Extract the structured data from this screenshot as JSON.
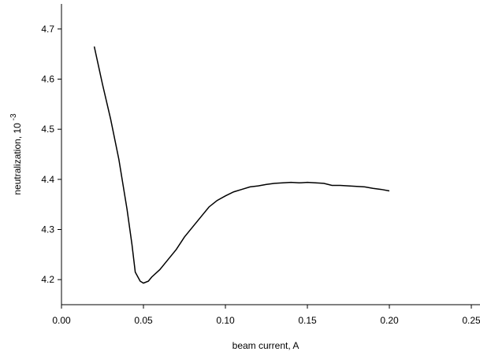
{
  "chart_data": {
    "type": "line",
    "xlabel": "beam current, A",
    "ylabel": "neutralization, 10",
    "ylabel_superscript": "-3",
    "xlim": [
      0,
      0.25
    ],
    "ylim": [
      4.15,
      4.75
    ],
    "xticks": [
      {
        "value": 0,
        "label": "0.00"
      },
      {
        "value": 0.05,
        "label": "0.05"
      },
      {
        "value": 0.1,
        "label": "0.10"
      },
      {
        "value": 0.15,
        "label": "0.15"
      },
      {
        "value": 0.2,
        "label": "0.20"
      },
      {
        "value": 0.25,
        "label": "0.25"
      }
    ],
    "yticks": [
      4.2,
      4.3,
      4.4,
      4.5,
      4.6,
      4.7
    ],
    "series": [
      {
        "color": "#000000",
        "x": [
          0.02,
          0.025,
          0.03,
          0.035,
          0.04,
          0.043,
          0.045,
          0.048,
          0.05,
          0.053,
          0.055,
          0.06,
          0.065,
          0.07,
          0.075,
          0.08,
          0.085,
          0.09,
          0.095,
          0.1,
          0.105,
          0.11,
          0.115,
          0.12,
          0.125,
          0.13,
          0.135,
          0.14,
          0.145,
          0.15,
          0.155,
          0.16,
          0.165,
          0.17,
          0.175,
          0.18,
          0.185,
          0.19,
          0.195,
          0.2
        ],
        "values": [
          4.665,
          4.59,
          4.52,
          4.44,
          4.34,
          4.27,
          4.215,
          4.197,
          4.193,
          4.197,
          4.205,
          4.22,
          4.24,
          4.26,
          4.285,
          4.305,
          4.325,
          4.345,
          4.358,
          4.367,
          4.375,
          4.38,
          4.385,
          4.387,
          4.39,
          4.392,
          4.393,
          4.394,
          4.393,
          4.394,
          4.393,
          4.392,
          4.388,
          4.388,
          4.387,
          4.386,
          4.385,
          4.382,
          4.38,
          4.377
        ]
      }
    ]
  }
}
